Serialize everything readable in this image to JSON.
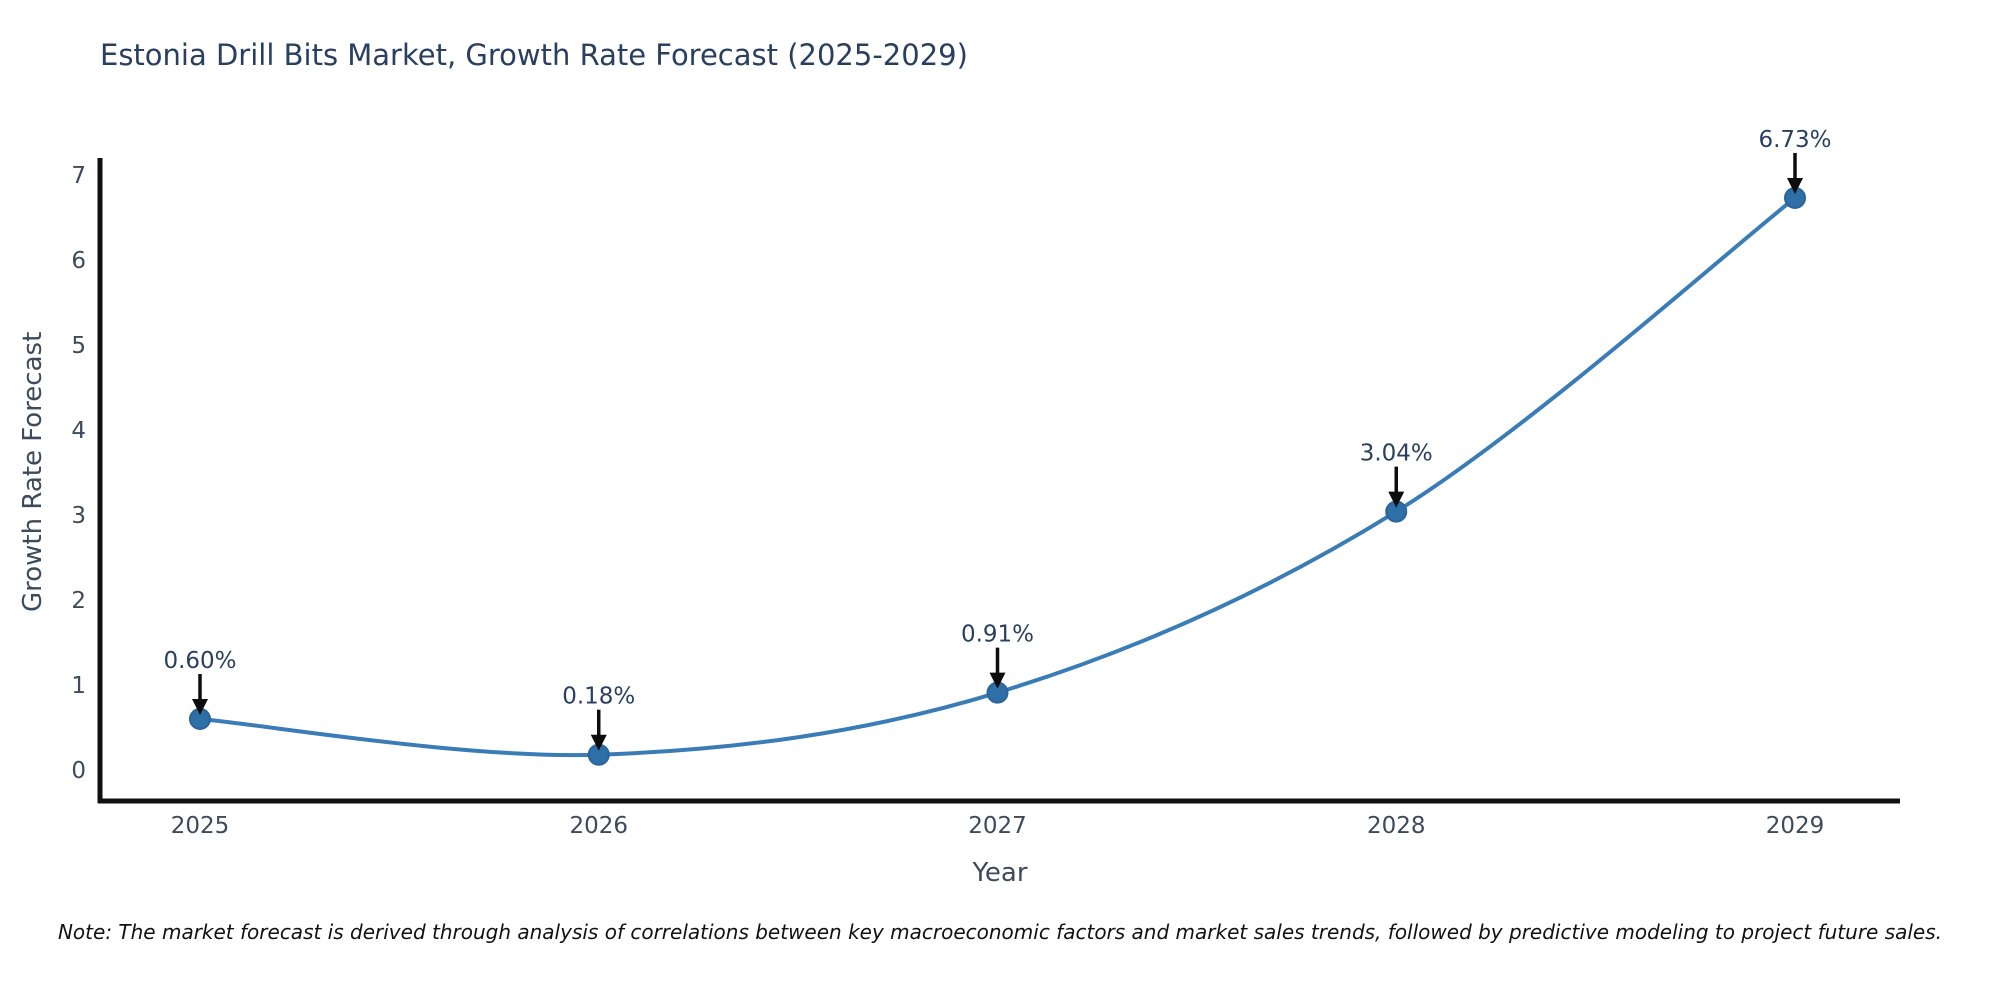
{
  "title": "Estonia Drill Bits Market, Growth Rate Forecast (2025-2029)",
  "note": "Note: The market forecast is derived through analysis of correlations between key macroeconomic factors and market sales trends, followed by predictive modeling to project future sales.",
  "chart_data": {
    "type": "line",
    "title": "Estonia Drill Bits Market, Growth Rate Forecast (2025-2029)",
    "xlabel": "Year",
    "ylabel": "Growth Rate Forecast",
    "categories": [
      "2025",
      "2026",
      "2027",
      "2028",
      "2029"
    ],
    "x": [
      2025,
      2026,
      2027,
      2028,
      2029
    ],
    "values": [
      0.6,
      0.18,
      0.91,
      3.04,
      6.73
    ],
    "point_labels": [
      "0.60%",
      "0.18%",
      "0.91%",
      "3.04%",
      "6.73%"
    ],
    "yticks": [
      0,
      1,
      2,
      3,
      4,
      5,
      6,
      7
    ],
    "ylim": [
      -0.4,
      7.2
    ],
    "line_shape": "spline",
    "grid": false,
    "legend": false,
    "annotations": "arrow-down-to-point",
    "colors": {
      "line": "#3a7cb5",
      "marker_fill": "#2e6fa8",
      "marker_edge": "#2a649b",
      "axis_line": "#111111",
      "tick_text": "#3d4a5c",
      "annotation_text": "#2a3f5f",
      "annotation_arrow": "#0d0d0d",
      "title_text": "#2a3f5f"
    }
  }
}
